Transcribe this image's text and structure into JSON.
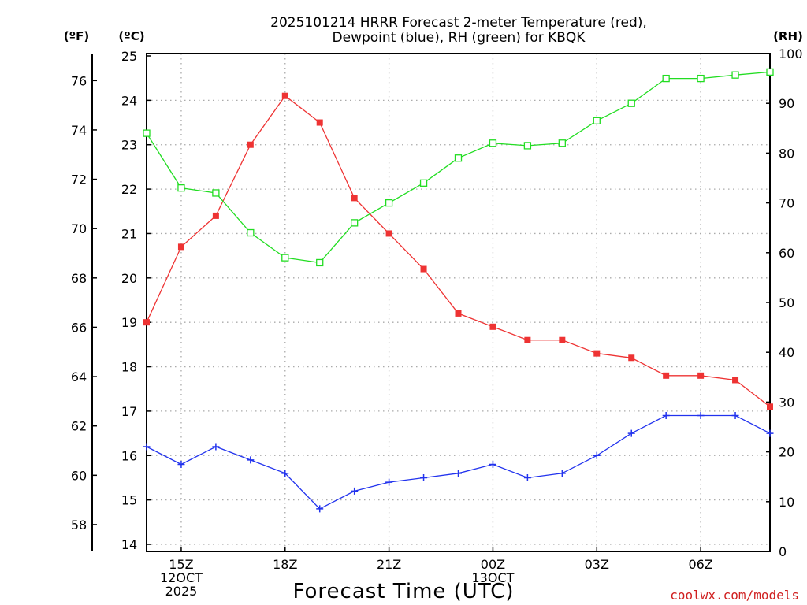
{
  "chart_data": {
    "type": "line",
    "title": [
      "2025101214 HRRR Forecast 2-meter Temperature (red),",
      "Dewpoint (blue), RH (green) for KBQK"
    ],
    "xlabel": "Forecast Time (UTC)",
    "units": {
      "fahrenheit": "(ºF)",
      "celsius": "(ºC)",
      "rh": "(RH)"
    },
    "x_hours": [
      14,
      15,
      16,
      17,
      18,
      19,
      20,
      21,
      22,
      23,
      24,
      25,
      26,
      27,
      28,
      29,
      30,
      31,
      32
    ],
    "xlim": [
      14,
      32
    ],
    "x_ticks": [
      {
        "hour": 15,
        "lines": [
          "15Z",
          "12OCT",
          "2025"
        ]
      },
      {
        "hour": 18,
        "lines": [
          "18Z"
        ]
      },
      {
        "hour": 21,
        "lines": [
          "21Z"
        ]
      },
      {
        "hour": 24,
        "lines": [
          "00Z",
          "13OCT"
        ]
      },
      {
        "hour": 27,
        "lines": [
          "03Z"
        ]
      },
      {
        "hour": 30,
        "lines": [
          "06Z"
        ]
      }
    ],
    "y_celsius": {
      "ylim": [
        14,
        25
      ],
      "ticks": [
        "14",
        "15",
        "16",
        "17",
        "18",
        "19",
        "20",
        "21",
        "22",
        "23",
        "24",
        "25"
      ]
    },
    "y_fahrenheit": {
      "ticks": [
        "58",
        "60",
        "62",
        "64",
        "66",
        "68",
        "70",
        "72",
        "74",
        "76"
      ]
    },
    "y_rh": {
      "ylim": [
        0,
        100
      ],
      "ticks": [
        "0",
        "10",
        "20",
        "30",
        "40",
        "50",
        "60",
        "70",
        "80",
        "90",
        "100"
      ]
    },
    "series": [
      {
        "name": "2-meter Temperature",
        "color": "#ee3333",
        "axis": "celsius",
        "marker": "filled-square",
        "values": [
          19.0,
          20.7,
          21.4,
          23.0,
          24.1,
          23.5,
          21.8,
          21.0,
          20.2,
          19.2,
          18.9,
          18.6,
          18.6,
          18.3,
          18.2,
          17.8,
          17.8,
          17.7,
          17.1
        ]
      },
      {
        "name": "Dewpoint",
        "color": "#2233ee",
        "axis": "celsius",
        "marker": "plus",
        "values": [
          16.2,
          15.8,
          16.2,
          15.9,
          15.6,
          14.8,
          15.2,
          15.4,
          15.5,
          15.6,
          15.8,
          15.5,
          15.6,
          16.0,
          16.5,
          16.9,
          16.9,
          16.9,
          16.5
        ]
      },
      {
        "name": "RH",
        "color": "#22dd22",
        "axis": "rh",
        "marker": "open-square",
        "values": [
          84,
          73,
          72,
          64,
          59,
          58,
          66,
          70,
          74,
          79,
          82,
          81.5,
          82,
          86.5,
          90,
          95,
          95,
          95.7,
          96.3
        ]
      }
    ],
    "grid": true,
    "credit": "coolwx.com/models"
  }
}
